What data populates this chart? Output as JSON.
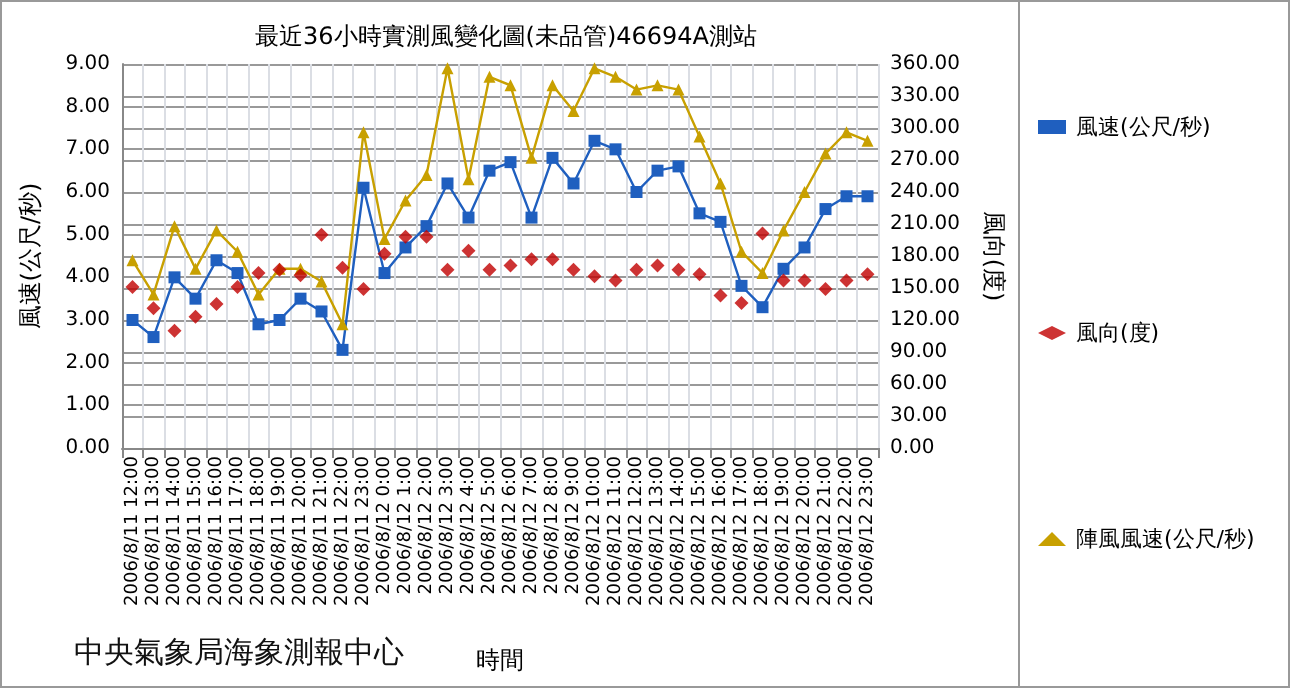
{
  "chart_data": {
    "type": "line",
    "title": "最近36小時實測風變化圖(未品管)46694A測站",
    "xlabel": "時間",
    "ylabel": "風速(公尺/秒)",
    "y2label": "風向(度)",
    "annotations": [
      "中央氣象局海象測報中心"
    ],
    "categories": [
      "2006/8/11 12:00",
      "2006/8/11 13:00",
      "2006/8/11 14:00",
      "2006/8/11 15:00",
      "2006/8/11 16:00",
      "2006/8/11 17:00",
      "2006/8/11 18:00",
      "2006/8/11 19:00",
      "2006/8/11 20:00",
      "2006/8/11 21:00",
      "2006/8/11 22:00",
      "2006/8/11 23:00",
      "2006/8/12 0:00",
      "2006/8/12 1:00",
      "2006/8/12 2:00",
      "2006/8/12 3:00",
      "2006/8/12 4:00",
      "2006/8/12 5:00",
      "2006/8/12 6:00",
      "2006/8/12 7:00",
      "2006/8/12 8:00",
      "2006/8/12 9:00",
      "2006/8/12 10:00",
      "2006/8/12 11:00",
      "2006/8/12 12:00",
      "2006/8/12 13:00",
      "2006/8/12 14:00",
      "2006/8/12 15:00",
      "2006/8/12 16:00",
      "2006/8/12 17:00",
      "2006/8/12 18:00",
      "2006/8/12 19:00",
      "2006/8/12 20:00",
      "2006/8/12 21:00",
      "2006/8/12 22:00",
      "2006/8/12 23:00"
    ],
    "series": [
      {
        "name": "風速(公尺/秒)",
        "marker": "square",
        "color": "#1f5fbf",
        "values": [
          3.0,
          2.6,
          4.0,
          3.5,
          4.4,
          4.1,
          2.9,
          3.0,
          3.5,
          3.2,
          2.3,
          6.1,
          4.1,
          4.7,
          5.2,
          6.2,
          5.4,
          6.5,
          6.7,
          5.4,
          6.8,
          6.2,
          7.2,
          7.0,
          6.0,
          6.5,
          6.6,
          5.5,
          5.3,
          3.8,
          3.3,
          4.2,
          4.7,
          5.6,
          5.9,
          5.9
        ]
      },
      {
        "name": "風向(度)",
        "type": "scatter",
        "marker": "diamond",
        "axis": "y2",
        "color": "#c00000",
        "values": [
          151,
          131,
          110,
          123,
          135,
          151,
          164,
          167,
          162,
          200,
          169,
          149,
          182,
          198,
          198,
          167,
          185,
          167,
          171,
          177,
          177,
          167,
          161,
          157,
          167,
          171,
          167,
          163,
          143,
          136,
          201,
          157,
          157,
          149,
          157,
          163
        ]
      },
      {
        "name": "陣風風速(公尺/秒)",
        "marker": "triangle",
        "color": "#c8a000",
        "values": [
          4.4,
          3.6,
          5.2,
          4.2,
          5.1,
          4.6,
          3.6,
          4.2,
          4.2,
          3.9,
          2.9,
          7.4,
          4.9,
          5.8,
          6.4,
          8.9,
          6.3,
          8.7,
          8.5,
          6.8,
          8.5,
          7.9,
          8.9,
          8.7,
          8.4,
          8.5,
          8.4,
          7.3,
          6.2,
          4.6,
          4.1,
          5.1,
          6.0,
          6.9,
          7.4,
          7.2
        ]
      }
    ],
    "ylim": [
      0,
      9
    ],
    "yticks": [
      {
        "value": 0,
        "label": "0.00"
      },
      {
        "value": 1,
        "label": "1.00"
      },
      {
        "value": 2,
        "label": "2.00"
      },
      {
        "value": 3,
        "label": "3.00"
      },
      {
        "value": 4,
        "label": "4.00"
      },
      {
        "value": 5,
        "label": "5.00"
      },
      {
        "value": 6,
        "label": "6.00"
      },
      {
        "value": 7,
        "label": "7.00"
      },
      {
        "value": 8,
        "label": "8.00"
      },
      {
        "value": 9,
        "label": "9.00"
      }
    ],
    "y2lim": [
      0,
      360
    ],
    "y2ticks": [
      {
        "value": 0,
        "label": "0.00"
      },
      {
        "value": 30,
        "label": "30.00"
      },
      {
        "value": 60,
        "label": "60.00"
      },
      {
        "value": 90,
        "label": "90.00"
      },
      {
        "value": 120,
        "label": "120.00"
      },
      {
        "value": 150,
        "label": "150.00"
      },
      {
        "value": 180,
        "label": "180.00"
      },
      {
        "value": 210,
        "label": "210.00"
      },
      {
        "value": 240,
        "label": "240.00"
      },
      {
        "value": 270,
        "label": "270.00"
      },
      {
        "value": 300,
        "label": "300.00"
      },
      {
        "value": 330,
        "label": "330.00"
      },
      {
        "value": 360,
        "label": "360.00"
      }
    ],
    "grid": true,
    "legend": "right"
  }
}
